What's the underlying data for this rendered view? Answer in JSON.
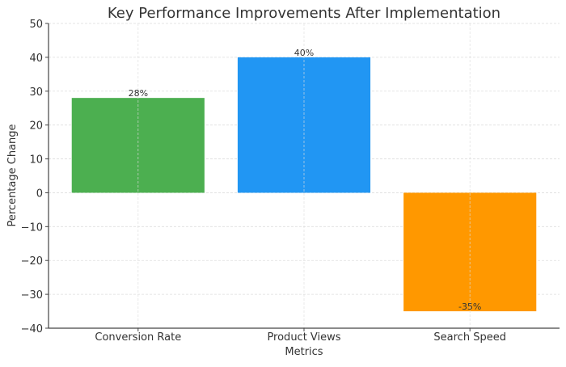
{
  "chart_data": {
    "type": "bar",
    "title": "Key Performance Improvements After Implementation",
    "xlabel": "Metrics",
    "ylabel": "Percentage Change",
    "categories": [
      "Conversion Rate",
      "Product Views",
      "Search Speed"
    ],
    "values": [
      28,
      40,
      -35
    ],
    "data_labels": [
      "28%",
      "40%",
      "-35%"
    ],
    "colors": [
      "#4caf50",
      "#2196f3",
      "#ff9800"
    ],
    "ylim": [
      -40,
      50
    ],
    "yticks": [
      -40,
      -30,
      -20,
      -10,
      0,
      10,
      20,
      30,
      40,
      50
    ],
    "ytick_labels": [
      "−40",
      "−30",
      "−20",
      "−10",
      "0",
      "10",
      "20",
      "30",
      "40",
      "50"
    ],
    "grid": true,
    "legend": "none"
  }
}
